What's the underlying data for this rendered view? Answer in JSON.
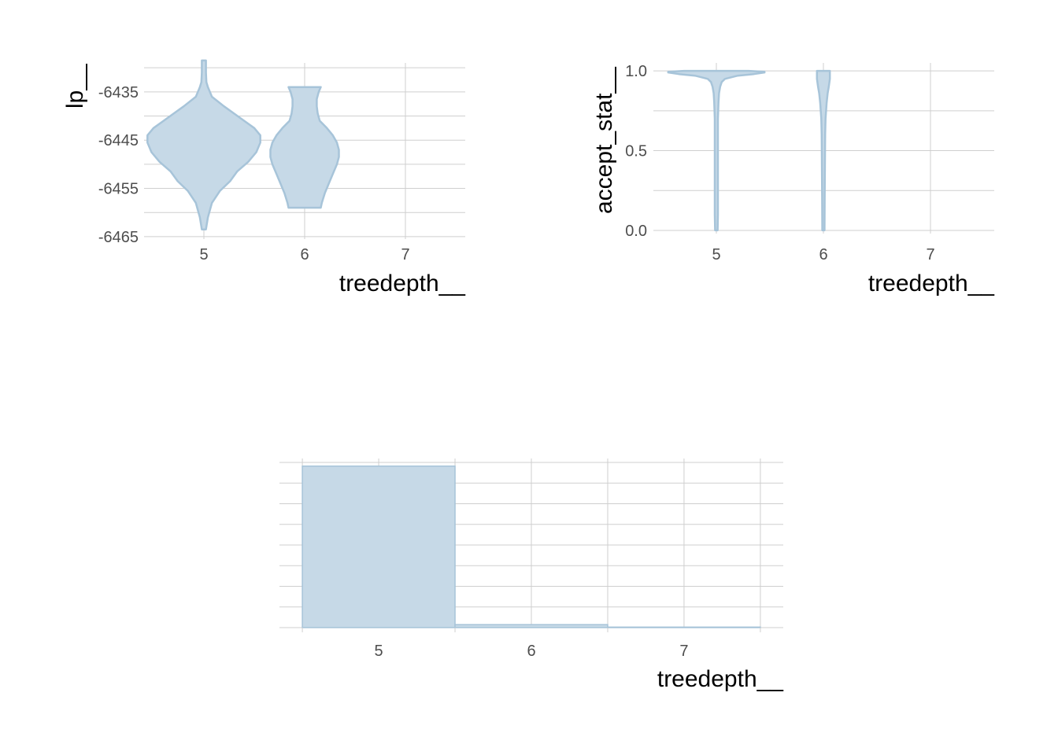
{
  "colors": {
    "fill": "#c6d9e7",
    "outline": "#a7c4d9",
    "grid": "#cfcfcf",
    "tick_text": "#4d4d4d",
    "title_text": "#000000"
  },
  "chart_data": [
    {
      "type": "violin",
      "id": "lp",
      "xlabel": "treedepth__",
      "ylabel": "lp__",
      "categories": [
        "5",
        "6",
        "7"
      ],
      "yticks": [
        -6465,
        -6455,
        -6445,
        -6435
      ],
      "ytick_labels": [
        "-6465",
        "-6455",
        "-6445",
        "-6435"
      ],
      "ylim": [
        -6465.5,
        -6429
      ],
      "distributions": [
        {
          "category": "5",
          "y": [
            -6463.5,
            -6461,
            -6458,
            -6455.5,
            -6453.5,
            -6451.5,
            -6449.5,
            -6447.5,
            -6445.5,
            -6444,
            -6442.5,
            -6441,
            -6439.5,
            -6438,
            -6436,
            -6434,
            -6433,
            -6431,
            -6428.5
          ],
          "half_width": [
            0.02,
            0.04,
            0.08,
            0.16,
            0.26,
            0.33,
            0.44,
            0.52,
            0.56,
            0.56,
            0.5,
            0.4,
            0.3,
            0.2,
            0.08,
            0.04,
            0.025,
            0.02,
            0.02
          ]
        },
        {
          "category": "6",
          "y": [
            -6459,
            -6458,
            -6456,
            -6454,
            -6452,
            -6450,
            -6448.5,
            -6447,
            -6445.5,
            -6444,
            -6442.5,
            -6441,
            -6439.5,
            -6438,
            -6436.5,
            -6435,
            -6434
          ],
          "half_width": [
            0.16,
            0.17,
            0.2,
            0.24,
            0.28,
            0.32,
            0.34,
            0.34,
            0.32,
            0.28,
            0.22,
            0.15,
            0.13,
            0.12,
            0.12,
            0.14,
            0.16
          ]
        }
      ]
    },
    {
      "type": "violin",
      "id": "accept_stat",
      "xlabel": "treedepth__",
      "ylabel": "accept_stat__",
      "categories": [
        "5",
        "6",
        "7"
      ],
      "yticks": [
        0.0,
        0.5,
        1.0
      ],
      "ytick_labels": [
        "0.0",
        "0.5",
        "1.0"
      ],
      "ylim": [
        -0.02,
        1.05
      ],
      "distributions": [
        {
          "category": "5",
          "y": [
            0.0,
            0.1,
            0.3,
            0.5,
            0.7,
            0.8,
            0.86,
            0.9,
            0.93,
            0.95,
            0.97,
            0.98,
            0.99,
            0.995,
            1.0
          ],
          "half_width": [
            0.012,
            0.015,
            0.015,
            0.015,
            0.015,
            0.02,
            0.025,
            0.035,
            0.05,
            0.08,
            0.2,
            0.35,
            0.45,
            0.45,
            0.3
          ]
        },
        {
          "category": "6",
          "y": [
            0.0,
            0.2,
            0.4,
            0.6,
            0.7,
            0.8,
            0.86,
            0.9,
            0.95,
            1.0
          ],
          "half_width": [
            0.01,
            0.012,
            0.014,
            0.016,
            0.02,
            0.03,
            0.04,
            0.05,
            0.06,
            0.06
          ]
        }
      ]
    },
    {
      "type": "bar",
      "id": "treedepth_hist",
      "xlabel": "treedepth__",
      "ylabel": "",
      "categories": [
        "5",
        "6",
        "7"
      ],
      "values": [
        0.979,
        0.018,
        0.003
      ],
      "ylim": [
        0,
        1.025
      ],
      "y_gridlines": 9,
      "bin_edges": [
        4.5,
        5.5,
        6.5,
        7.5
      ],
      "xlim": [
        4.35,
        7.65
      ]
    }
  ]
}
